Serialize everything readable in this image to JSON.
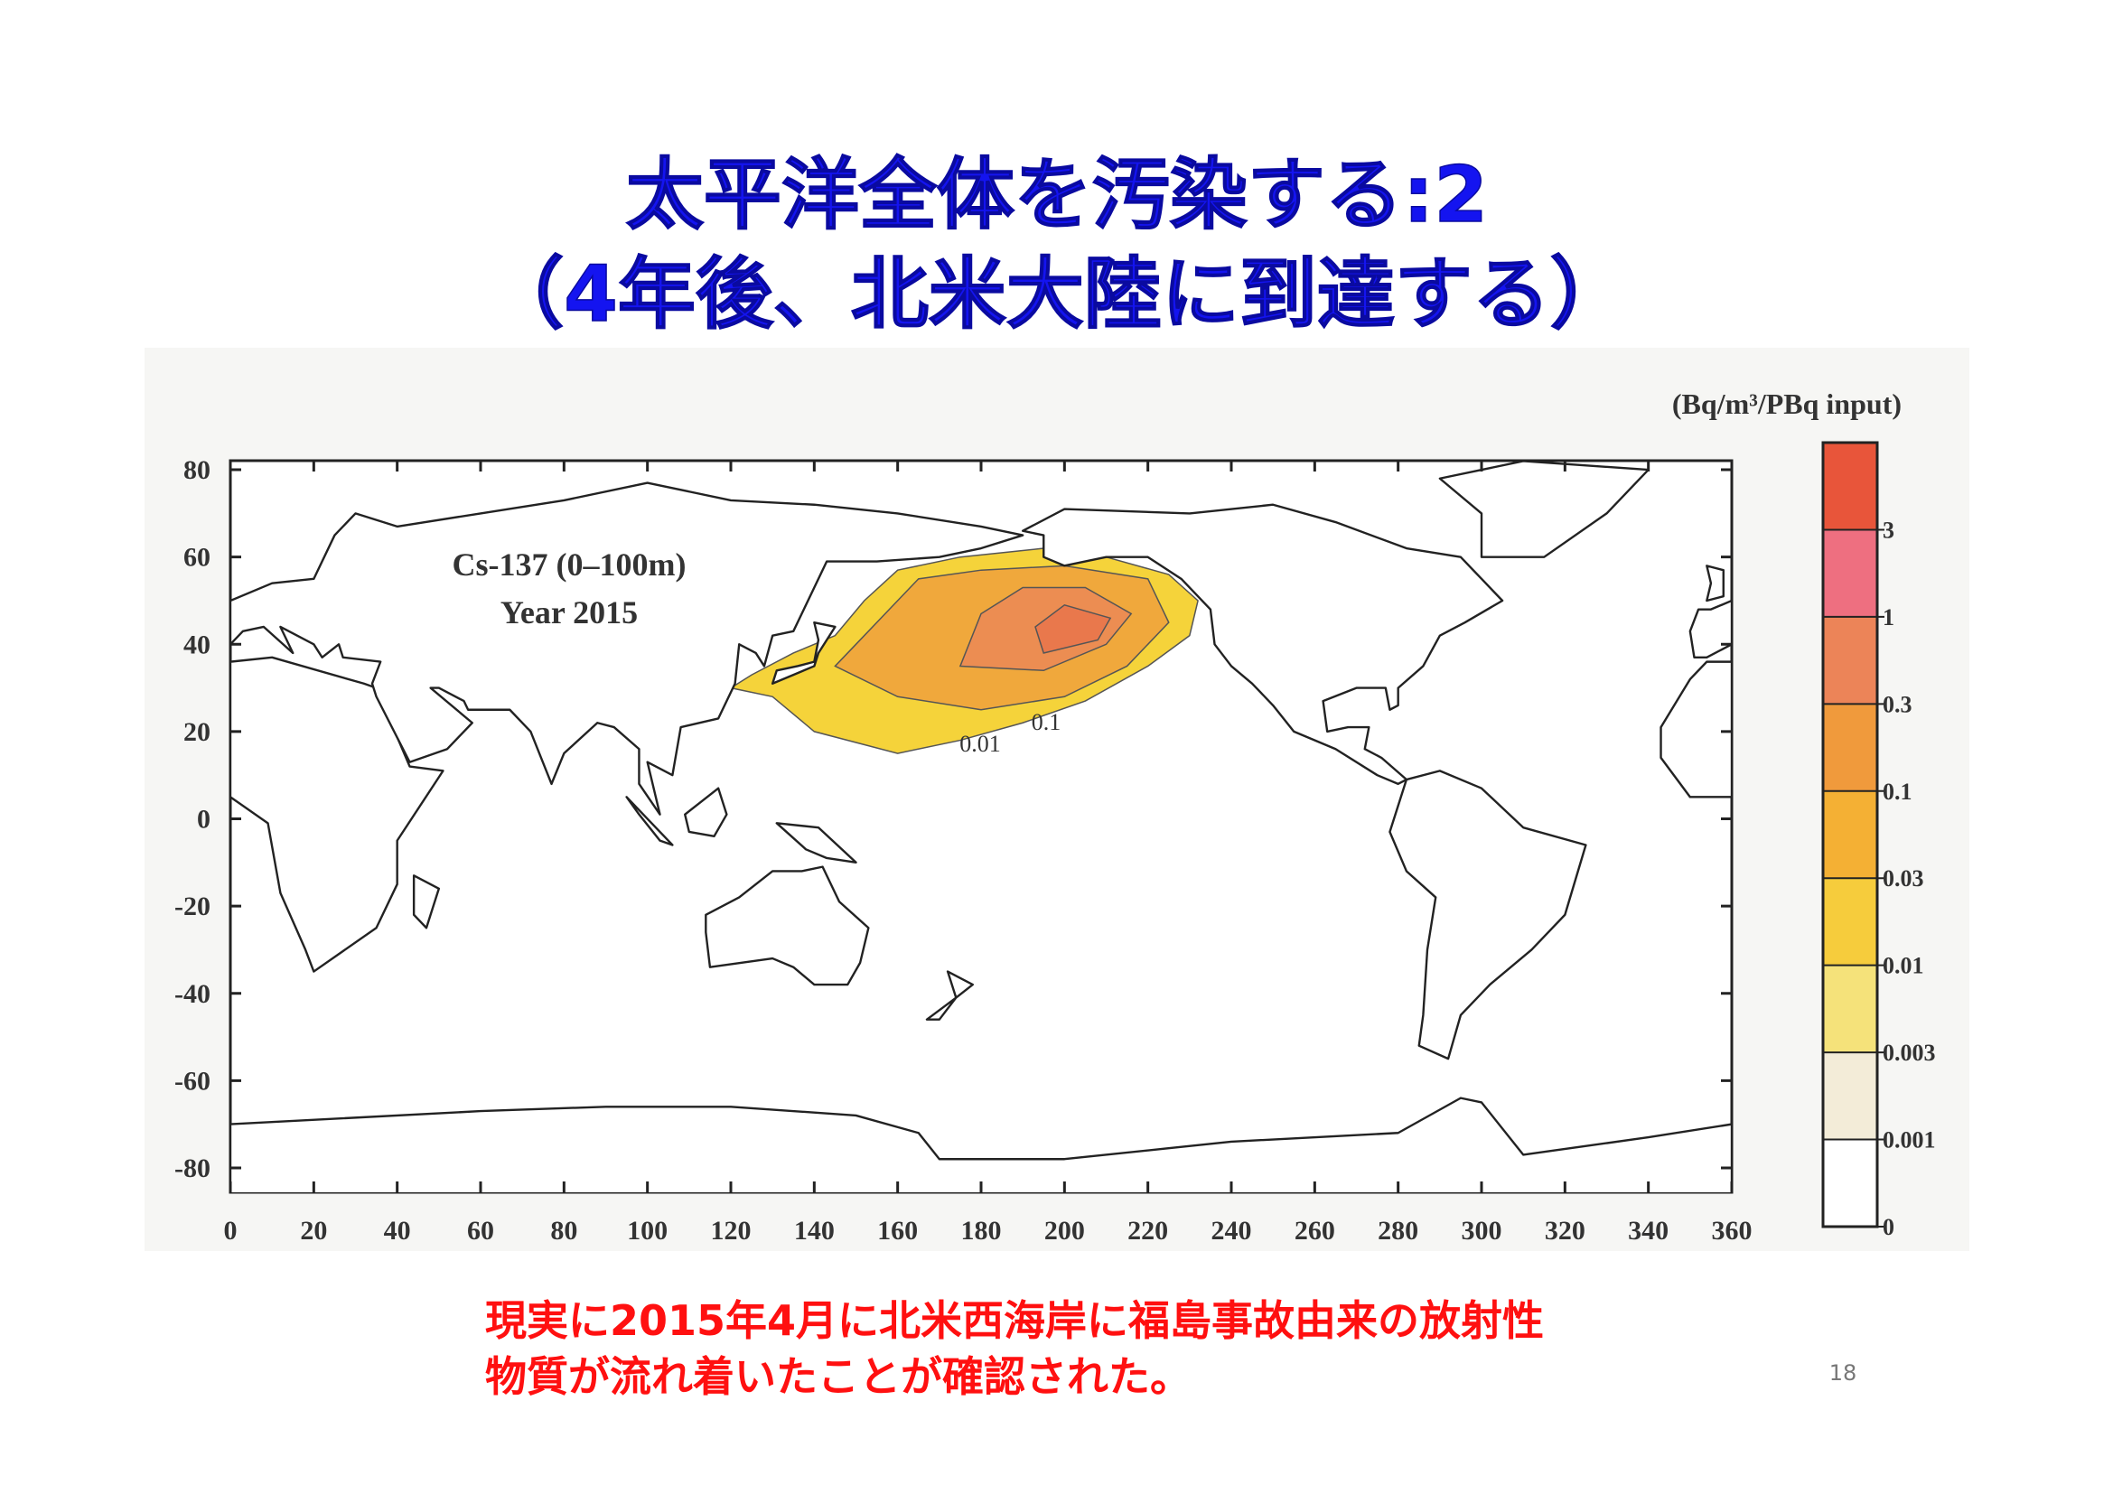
{
  "title": {
    "lines": [
      "太平洋全体を汚染する:2",
      "（4年後、北米大陸に到達する）"
    ]
  },
  "figure": {
    "unit": "(Bq/m³/PBq input)",
    "annotation": [
      "Cs-137 (0–100m)",
      "Year 2015"
    ],
    "contour_labels": [
      "0.01",
      "0.1"
    ],
    "y_axis_labels": [
      "80",
      "60",
      "40",
      "20",
      "0",
      "-20",
      "-40",
      "-60",
      "-80"
    ],
    "x_axis_labels": [
      "0",
      "20",
      "40",
      "60",
      "80",
      "100",
      "120",
      "140",
      "160",
      "180",
      "200",
      "220",
      "240",
      "260",
      "280",
      "300",
      "320",
      "340",
      "360"
    ],
    "colorbar_labels": [
      "3",
      "1",
      "0.3",
      "0.1",
      "0.03",
      "0.01",
      "0.003",
      "0.001",
      "0"
    ]
  },
  "caption": {
    "lines": [
      "現実に2015年4月に北米西海岸に福島事故由来の放射性",
      "物質が流れ着いたことが確認された。"
    ]
  },
  "page_number": "18"
}
